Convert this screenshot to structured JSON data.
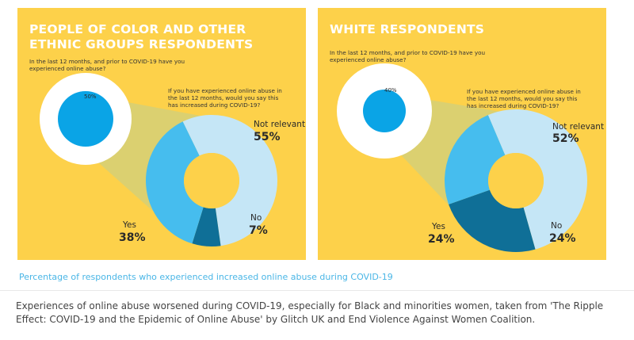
{
  "panels": [
    {
      "title": "PEOPLE OF COLOR AND OTHER ETHNIC GROUPS RESPONDENTS",
      "question1": "In the last 12 months, and prior to COVID-19 have you experienced online abuse?",
      "question2": "If you have experienced online abuse in the last 12 months, would you say this has increased during COVID-19?",
      "small_pct": "50%",
      "labels": {
        "not_relevant": "Not relevant",
        "yes": "Yes",
        "no": "No"
      },
      "values_text": {
        "not_relevant": "55%",
        "yes": "38%",
        "no": "7%"
      }
    },
    {
      "title": "WHITE RESPONDENTS",
      "question1": "In the last 12 months, and prior to COVID-19 have you experienced online abuse?",
      "question2": "If you have experienced online abuse in the last 12 months, would you say this has increased during COVID-19?",
      "small_pct": "40%",
      "labels": {
        "not_relevant": "Not relevant",
        "yes": "Yes",
        "no": "No"
      },
      "values_text": {
        "not_relevant": "52%",
        "yes": "24%",
        "no": "24%"
      }
    }
  ],
  "chart_data": [
    {
      "type": "pie",
      "title": "PEOPLE OF COLOR AND OTHER ETHNIC GROUPS RESPONDENTS",
      "small_chart": {
        "categories": [
          "Experienced online abuse"
        ],
        "values": [
          50
        ]
      },
      "categories": [
        "Not relevant",
        "No",
        "Yes"
      ],
      "values": [
        55,
        7,
        38
      ]
    },
    {
      "type": "pie",
      "title": "WHITE RESPONDENTS",
      "small_chart": {
        "categories": [
          "Experienced online abuse"
        ],
        "values": [
          40
        ]
      },
      "categories": [
        "Not relevant",
        "No",
        "Yes"
      ],
      "values": [
        52,
        24,
        24
      ]
    }
  ],
  "colors": {
    "background": "#fdd14a",
    "not_relevant": "#c5e6f6",
    "yes": "#46bdee",
    "no": "#0f6f97",
    "small_fill": "#0aa4e6",
    "small_ring": "#ffffff",
    "connector": "#cfcf7e"
  },
  "caption_link": "Percentage of respondents who experienced increased online abuse during COVID-19",
  "caption": "Experiences of online abuse worsened during COVID-19, especially for Black and minorities women, taken from 'The Ripple Effect: COVID-19 and the Epidemic of Online Abuse' by Glitch UK and End Violence Against Women Coalition."
}
